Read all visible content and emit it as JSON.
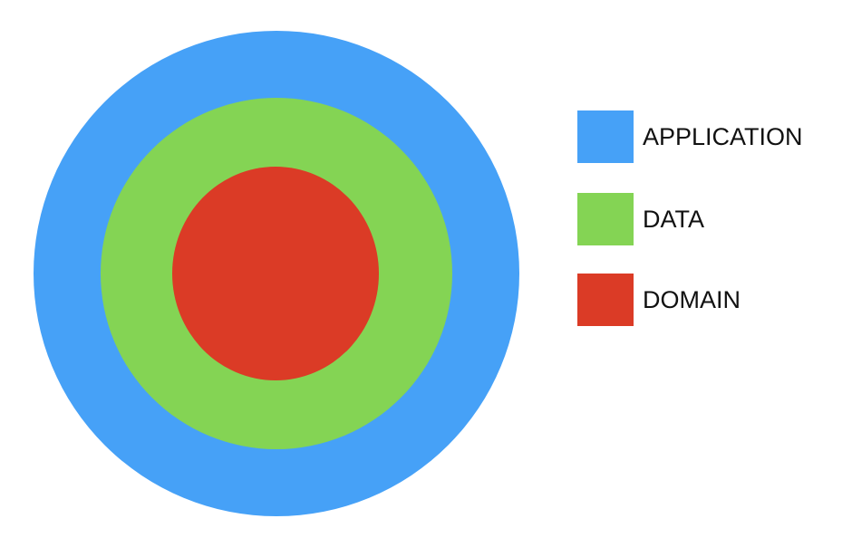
{
  "layers": [
    {
      "name": "APPLICATION",
      "color": "#46a1f7"
    },
    {
      "name": "DATA",
      "color": "#84d454"
    },
    {
      "name": "DOMAIN",
      "color": "#db3b26"
    }
  ]
}
